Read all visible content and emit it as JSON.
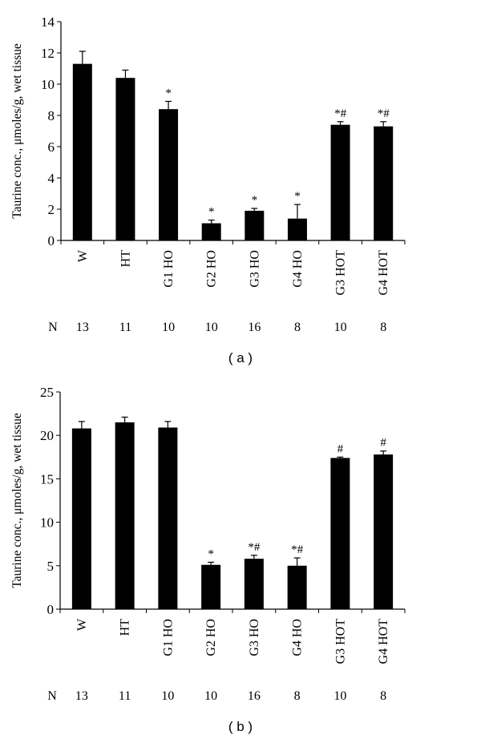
{
  "chart_data": [
    {
      "type": "bar",
      "panel_label": "( a )",
      "ylabel": "Taurine conc., μmoles/g, wet tissue",
      "ylim": [
        0,
        14
      ],
      "yticks": [
        0,
        2,
        4,
        6,
        8,
        10,
        12,
        14
      ],
      "categories": [
        "W",
        "HT",
        "G1 HO",
        "G2 HO",
        "G3 HO",
        "G4 HO",
        "G3 HOT",
        "G4 HOT"
      ],
      "values": [
        11.3,
        10.4,
        8.4,
        1.1,
        1.9,
        1.4,
        7.4,
        7.3
      ],
      "error_upper": [
        12.1,
        10.9,
        8.9,
        1.3,
        2.05,
        2.3,
        7.6,
        7.6
      ],
      "annotations": [
        "",
        "",
        "*",
        "*",
        "*",
        "*",
        "*#",
        "*#"
      ],
      "n_label": "N",
      "n_values": [
        "13",
        "11",
        "10",
        "10",
        "16",
        "8",
        "10",
        "8"
      ],
      "bar_color": "#000000"
    },
    {
      "type": "bar",
      "panel_label": "( b )",
      "ylabel": "Taurine conc., μmoles/g, wet tissue",
      "ylim": [
        0,
        25
      ],
      "yticks": [
        0,
        5,
        10,
        15,
        20,
        25
      ],
      "categories": [
        "W",
        "HT",
        "G1 HO",
        "G2 HO",
        "G3 HO",
        "G4 HO",
        "G3 HOT",
        "G4 HOT"
      ],
      "values": [
        20.8,
        21.5,
        20.9,
        5.1,
        5.8,
        5.0,
        17.4,
        17.8
      ],
      "error_upper": [
        21.6,
        22.1,
        21.6,
        5.4,
        6.2,
        5.9,
        17.5,
        18.2
      ],
      "annotations": [
        "",
        "",
        "",
        "*",
        "*#",
        "*#",
        "#",
        "#"
      ],
      "n_label": "N",
      "n_values": [
        "13",
        "11",
        "10",
        "10",
        "16",
        "8",
        "10",
        "8"
      ],
      "bar_color": "#000000"
    }
  ]
}
